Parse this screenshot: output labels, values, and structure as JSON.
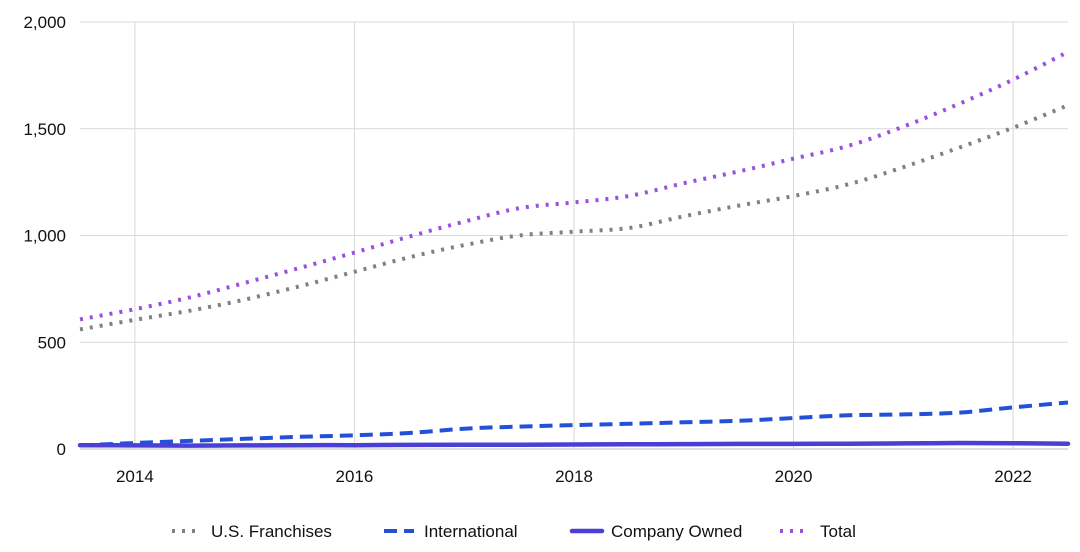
{
  "chart_data": {
    "type": "line",
    "x": [
      2013.5,
      2014,
      2014.5,
      2015,
      2015.5,
      2016,
      2016.5,
      2017,
      2017.5,
      2018,
      2018.5,
      2019,
      2019.5,
      2020,
      2020.5,
      2021,
      2021.5,
      2022,
      2022.5
    ],
    "series": [
      {
        "name": "U.S. Franchises",
        "color": "#808080",
        "style": "dotted",
        "values": [
          560,
          605,
          648,
          700,
          762,
          830,
          898,
          955,
          1000,
          1018,
          1035,
          1090,
          1140,
          1185,
          1240,
          1320,
          1410,
          1505,
          1610
        ]
      },
      {
        "name": "International",
        "color": "#2450d8",
        "style": "dashed",
        "values": [
          17,
          28,
          38,
          48,
          57,
          64,
          75,
          95,
          105,
          112,
          118,
          125,
          132,
          145,
          158,
          162,
          170,
          195,
          218
        ]
      },
      {
        "name": "Company Owned",
        "color": "#4a40d6",
        "style": "solid",
        "values": [
          18,
          17,
          16,
          17,
          18,
          18,
          19,
          20,
          20,
          21,
          22,
          23,
          24,
          24,
          25,
          26,
          28,
          27,
          25
        ]
      },
      {
        "name": "Total",
        "color": "#9b4fe0",
        "style": "dotted",
        "values": [
          607,
          655,
          710,
          778,
          848,
          920,
          995,
          1065,
          1128,
          1155,
          1185,
          1245,
          1300,
          1360,
          1420,
          1510,
          1615,
          1730,
          1860
        ]
      }
    ],
    "xlim": [
      2013.5,
      2022.5
    ],
    "ylim": [
      0,
      2000
    ],
    "x_ticks": [
      2014,
      2016,
      2018,
      2020,
      2022
    ],
    "y_ticks": [
      0,
      500,
      1000,
      1500,
      2000
    ],
    "x_tick_labels": [
      "2014",
      "2016",
      "2018",
      "2020",
      "2022"
    ],
    "y_tick_labels": [
      "0",
      "500",
      "1,000",
      "1,500",
      "2,000"
    ],
    "grid": true,
    "legend_position": "bottom-center",
    "title": "",
    "xlabel": "",
    "ylabel": ""
  }
}
